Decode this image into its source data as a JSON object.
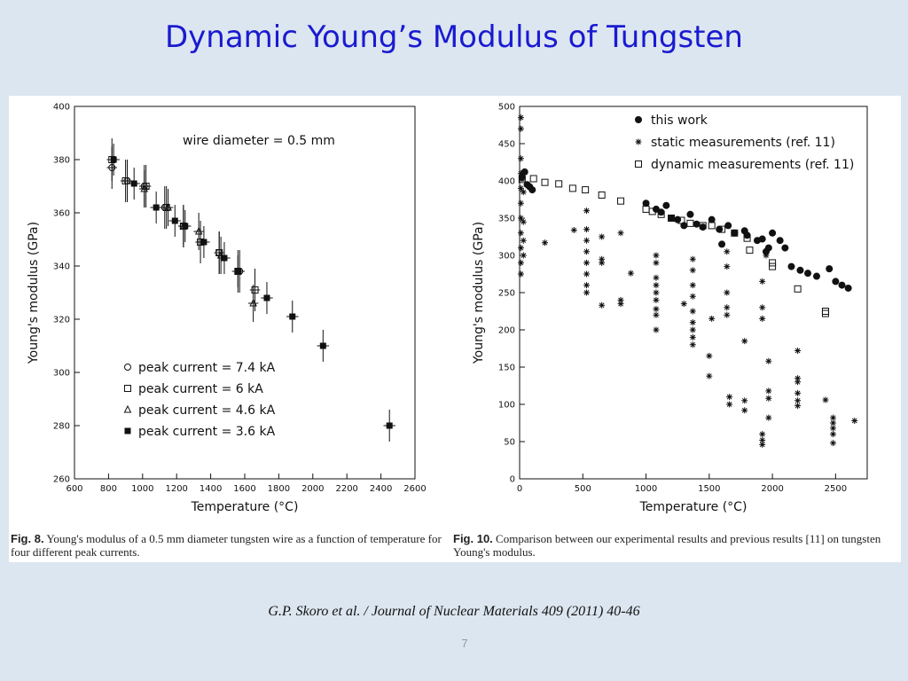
{
  "slide": {
    "title": "Dynamic Young’s Modulus of Tungsten",
    "citation": "G.P. Skoro et al. / Journal of Nuclear Materials 409 (2011) 40-46",
    "page_number": "7"
  },
  "colors": {
    "title": "#1a1ad0",
    "background": "#dce6f0",
    "panel": "#ffffff"
  },
  "chart_data": [
    {
      "type": "scatter",
      "xlabel": "Temperature (°C)",
      "ylabel": "Young's modulus (GPa)",
      "xlim": [
        600,
        2600
      ],
      "ylim": [
        260,
        400
      ],
      "x_ticks": [
        600,
        800,
        1000,
        1200,
        1400,
        1600,
        1800,
        2000,
        2200,
        2400,
        2600
      ],
      "y_ticks": [
        260,
        280,
        300,
        320,
        340,
        360,
        380,
        400
      ],
      "annotation": "wire diameter = 0.5 mm",
      "legend_position": "bottom-left",
      "caption": {
        "label": "Fig. 8.",
        "text": "Young's modulus of a 0.5 mm diameter tungsten wire as a function of temperature for four different peak currents."
      },
      "series": [
        {
          "name": "peak current = 7.4 kA",
          "marker": "circle-open",
          "x_err": 30,
          "y_err": 8,
          "points": [
            [
              820,
              377
            ],
            [
              910,
              372
            ],
            [
              1010,
              370
            ],
            [
              1130,
              362
            ],
            [
              1240,
              355
            ],
            [
              1450,
              345
            ],
            [
              1570,
              338
            ]
          ]
        },
        {
          "name": "peak current = 6 kA",
          "marker": "square-open",
          "x_err": 30,
          "y_err": 8,
          "points": [
            [
              820,
              380
            ],
            [
              900,
              372
            ],
            [
              1020,
              370
            ],
            [
              1140,
              362
            ],
            [
              1240,
              355
            ],
            [
              1340,
              349
            ],
            [
              1450,
              345
            ],
            [
              1560,
              338
            ],
            [
              1660,
              331
            ]
          ]
        },
        {
          "name": "peak current = 4.6 kA",
          "marker": "triangle-open",
          "x_err": 30,
          "y_err": 7,
          "points": [
            [
              1010,
              369
            ],
            [
              1150,
              362
            ],
            [
              1240,
              355
            ],
            [
              1330,
              353
            ],
            [
              1460,
              344
            ],
            [
              1650,
              326
            ]
          ]
        },
        {
          "name": "peak current = 3.6 kA",
          "marker": "square-filled",
          "x_err": 35,
          "y_err": 6,
          "points": [
            [
              830,
              380
            ],
            [
              950,
              371
            ],
            [
              1080,
              362
            ],
            [
              1190,
              357
            ],
            [
              1250,
              355
            ],
            [
              1360,
              349
            ],
            [
              1480,
              343
            ],
            [
              1560,
              338
            ],
            [
              1730,
              328
            ],
            [
              1880,
              321
            ],
            [
              2060,
              310
            ],
            [
              2450,
              280
            ]
          ]
        }
      ]
    },
    {
      "type": "scatter",
      "xlabel": "Temperature (°C)",
      "ylabel": "Young's modulus (GPa)",
      "xlim": [
        0,
        2750
      ],
      "ylim": [
        0,
        500
      ],
      "x_ticks": [
        0,
        500,
        1000,
        1500,
        2000,
        2500
      ],
      "y_ticks": [
        0,
        50,
        100,
        150,
        200,
        250,
        300,
        350,
        400,
        450,
        500
      ],
      "legend_position": "top-right",
      "caption": {
        "label": "Fig. 10.",
        "text": "Comparison between our experimental results and previous results [11] on tungsten Young's modulus."
      },
      "series": [
        {
          "name": "this work",
          "marker": "circle-filled",
          "points": [
            [
              20,
              405
            ],
            [
              40,
              412
            ],
            [
              60,
              395
            ],
            [
              80,
              392
            ],
            [
              100,
              388
            ],
            [
              1000,
              370
            ],
            [
              1080,
              362
            ],
            [
              1120,
              358
            ],
            [
              1160,
              367
            ],
            [
              1200,
              350
            ],
            [
              1250,
              348
            ],
            [
              1300,
              340
            ],
            [
              1350,
              355
            ],
            [
              1400,
              342
            ],
            [
              1450,
              338
            ],
            [
              1520,
              348
            ],
            [
              1580,
              335
            ],
            [
              1600,
              315
            ],
            [
              1650,
              340
            ],
            [
              1700,
              330
            ],
            [
              1780,
              333
            ],
            [
              1800,
              327
            ],
            [
              1880,
              320
            ],
            [
              1920,
              322
            ],
            [
              1950,
              305
            ],
            [
              1970,
              310
            ],
            [
              2000,
              330
            ],
            [
              2060,
              320
            ],
            [
              2100,
              310
            ],
            [
              2150,
              285
            ],
            [
              2220,
              280
            ],
            [
              2280,
              276
            ],
            [
              2350,
              272
            ],
            [
              2450,
              282
            ],
            [
              2500,
              265
            ],
            [
              2550,
              260
            ],
            [
              2600,
              256
            ]
          ]
        },
        {
          "name": "static measurements (ref. 11)",
          "marker": "asterisk",
          "points": [
            [
              10,
              485
            ],
            [
              10,
              470
            ],
            [
              10,
              430
            ],
            [
              10,
              410
            ],
            [
              10,
              390
            ],
            [
              10,
              370
            ],
            [
              10,
              350
            ],
            [
              10,
              330
            ],
            [
              10,
              310
            ],
            [
              10,
              290
            ],
            [
              10,
              275
            ],
            [
              30,
              345
            ],
            [
              30,
              320
            ],
            [
              30,
              300
            ],
            [
              30,
              385
            ],
            [
              200,
              317
            ],
            [
              430,
              334
            ],
            [
              530,
              360
            ],
            [
              530,
              335
            ],
            [
              530,
              320
            ],
            [
              530,
              305
            ],
            [
              530,
              290
            ],
            [
              530,
              275
            ],
            [
              530,
              260
            ],
            [
              530,
              250
            ],
            [
              650,
              325
            ],
            [
              650,
              295
            ],
            [
              650,
              290
            ],
            [
              650,
              233
            ],
            [
              800,
              330
            ],
            [
              800,
              240
            ],
            [
              800,
              235
            ],
            [
              880,
              276
            ],
            [
              1080,
              300
            ],
            [
              1080,
              290
            ],
            [
              1080,
              270
            ],
            [
              1080,
              260
            ],
            [
              1080,
              250
            ],
            [
              1080,
              240
            ],
            [
              1080,
              228
            ],
            [
              1080,
              220
            ],
            [
              1080,
              200
            ],
            [
              1300,
              235
            ],
            [
              1370,
              295
            ],
            [
              1370,
              280
            ],
            [
              1370,
              260
            ],
            [
              1370,
              245
            ],
            [
              1370,
              225
            ],
            [
              1370,
              210
            ],
            [
              1370,
              200
            ],
            [
              1370,
              190
            ],
            [
              1370,
              180
            ],
            [
              1500,
              165
            ],
            [
              1500,
              138
            ],
            [
              1520,
              215
            ],
            [
              1640,
              305
            ],
            [
              1640,
              285
            ],
            [
              1640,
              250
            ],
            [
              1640,
              230
            ],
            [
              1640,
              220
            ],
            [
              1660,
              110
            ],
            [
              1660,
              100
            ],
            [
              1780,
              185
            ],
            [
              1780,
              105
            ],
            [
              1780,
              92
            ],
            [
              1920,
              265
            ],
            [
              1920,
              230
            ],
            [
              1920,
              215
            ],
            [
              1920,
              60
            ],
            [
              1920,
              52
            ],
            [
              1920,
              46
            ],
            [
              1950,
              300
            ],
            [
              1970,
              158
            ],
            [
              1970,
              118
            ],
            [
              1970,
              108
            ],
            [
              1970,
              82
            ],
            [
              2200,
              172
            ],
            [
              2200,
              135
            ],
            [
              2200,
              130
            ],
            [
              2200,
              115
            ],
            [
              2200,
              105
            ],
            [
              2200,
              98
            ],
            [
              2420,
              106
            ],
            [
              2480,
              82
            ],
            [
              2480,
              75
            ],
            [
              2480,
              68
            ],
            [
              2480,
              60
            ],
            [
              2480,
              48
            ],
            [
              2650,
              78
            ]
          ]
        },
        {
          "name": "dynamic measurements (ref. 11)",
          "marker": "square-open",
          "points": [
            [
              20,
              402
            ],
            [
              110,
              403
            ],
            [
              200,
              398
            ],
            [
              310,
              396
            ],
            [
              420,
              390
            ],
            [
              520,
              388
            ],
            [
              650,
              381
            ],
            [
              800,
              373
            ],
            [
              1000,
              362
            ],
            [
              1050,
              359
            ],
            [
              1120,
              355
            ],
            [
              1200,
              350
            ],
            [
              1280,
              347
            ],
            [
              1350,
              343
            ],
            [
              1450,
              340
            ],
            [
              1520,
              340
            ],
            [
              1600,
              335
            ],
            [
              1700,
              330
            ],
            [
              1800,
              323
            ],
            [
              1820,
              307
            ],
            [
              2000,
              285
            ],
            [
              2000,
              290
            ],
            [
              2200,
              255
            ],
            [
              2420,
              225
            ],
            [
              2420,
              222
            ]
          ]
        }
      ]
    }
  ]
}
